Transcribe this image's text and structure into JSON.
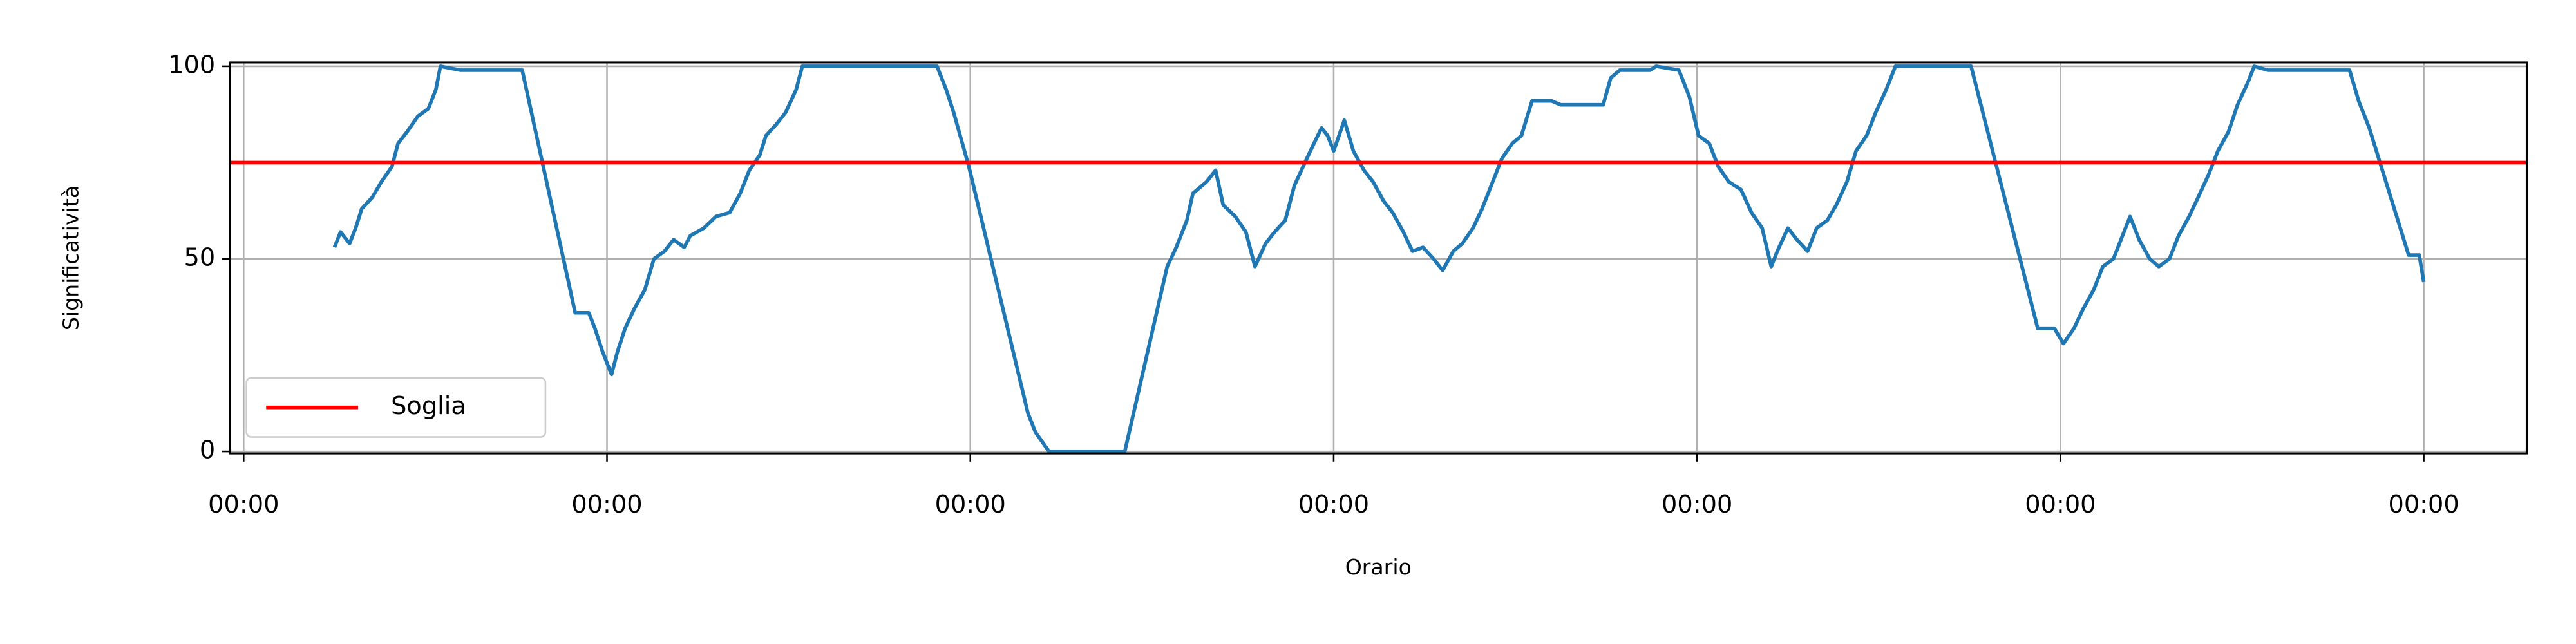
{
  "chart_data": {
    "type": "line",
    "xlabel": "Orario",
    "ylabel": "Significatività",
    "x": [
      6.0,
      6.4,
      7.0,
      7.4,
      7.8,
      8.5,
      9.1,
      9.8,
      10.2,
      10.8,
      11.5,
      12.2,
      12.7,
      13.0,
      14.3,
      18.4,
      21.9,
      22.8,
      23.2,
      23.7,
      24.3,
      24.7,
      25.2,
      25.8,
      26.5,
      27.1,
      27.8,
      28.4,
      29.1,
      29.5,
      30.4,
      31.2,
      32.1,
      32.8,
      33.4,
      34.1,
      34.5,
      35.2,
      35.8,
      36.5,
      36.9,
      45.8,
      46.4,
      46.9,
      47.9,
      51.8,
      52.3,
      53.2,
      58.2,
      61.0,
      61.6,
      62.3,
      62.7,
      63.6,
      64.2,
      64.7,
      65.5,
      66.2,
      66.8,
      67.5,
      68.1,
      68.8,
      69.4,
      70.1,
      70.7,
      71.2,
      71.6,
      72.0,
      72.7,
      73.3,
      74.0,
      74.6,
      75.3,
      75.9,
      76.6,
      77.2,
      77.9,
      78.6,
      79.2,
      79.9,
      80.5,
      81.2,
      81.8,
      82.5,
      83.1,
      83.8,
      84.4,
      85.1,
      86.4,
      87.0,
      89.8,
      90.3,
      90.9,
      92.9,
      93.3,
      94.8,
      95.5,
      96.1,
      96.8,
      97.4,
      98.1,
      98.9,
      99.6,
      100.3,
      100.9,
      101.3,
      102.0,
      102.6,
      103.3,
      103.9,
      104.6,
      105.2,
      105.9,
      106.5,
      107.2,
      107.8,
      108.5,
      109.1,
      114.1,
      118.5,
      119.6,
      120.2,
      120.9,
      121.5,
      122.2,
      122.8,
      123.5,
      124.1,
      124.6,
      125.2,
      125.9,
      126.5,
      127.2,
      127.8,
      128.5,
      129.1,
      129.8,
      130.4,
      131.1,
      131.7,
      132.4,
      132.8,
      133.7,
      139.1,
      139.7,
      140.4,
      143.0,
      143.7,
      144.0
    ],
    "series": [
      {
        "color": "#1f77b4",
        "values": [
          53,
          57,
          54,
          58,
          63,
          66,
          70,
          74,
          80,
          83,
          87,
          89,
          94,
          100,
          99,
          99,
          36,
          36,
          32,
          26,
          20,
          26,
          32,
          37,
          42,
          50,
          52,
          55,
          53,
          56,
          58,
          61,
          62,
          67,
          73,
          77,
          82,
          85,
          88,
          94,
          100,
          100,
          94,
          88,
          74,
          10,
          5,
          0,
          0,
          48,
          53,
          60,
          67,
          70,
          73,
          64,
          61,
          57,
          48,
          54,
          57,
          60,
          69,
          75,
          80,
          84,
          82,
          78,
          86,
          78,
          73,
          70,
          65,
          62,
          57,
          52,
          53,
          50,
          47,
          52,
          54,
          58,
          63,
          70,
          76,
          80,
          82,
          91,
          91,
          90,
          90,
          97,
          99,
          99,
          100,
          99,
          92,
          82,
          80,
          74,
          70,
          68,
          62,
          58,
          48,
          52,
          58,
          55,
          52,
          58,
          60,
          64,
          70,
          78,
          82,
          88,
          94,
          100,
          100,
          32,
          32,
          28,
          32,
          37,
          42,
          48,
          50,
          56,
          61,
          55,
          50,
          48,
          50,
          56,
          61,
          66,
          72,
          78,
          83,
          90,
          96,
          100,
          99,
          99,
          91,
          84,
          51,
          51,
          44
        ]
      }
    ],
    "hlines": [
      {
        "name": "Soglia",
        "y": 75,
        "color": "#ff0000"
      }
    ],
    "xlim": [
      -0.9,
      150.8
    ],
    "ylim": [
      -0.5,
      101
    ],
    "xticks": [
      {
        "value": 0,
        "label": "00:00"
      },
      {
        "value": 24,
        "label": "00:00"
      },
      {
        "value": 48,
        "label": "00:00"
      },
      {
        "value": 72,
        "label": "00:00"
      },
      {
        "value": 96,
        "label": "00:00"
      },
      {
        "value": 120,
        "label": "00:00"
      },
      {
        "value": 144,
        "label": "00:00"
      }
    ],
    "yticks": [
      0,
      50,
      100
    ],
    "grid": true,
    "legend": "lower left"
  }
}
